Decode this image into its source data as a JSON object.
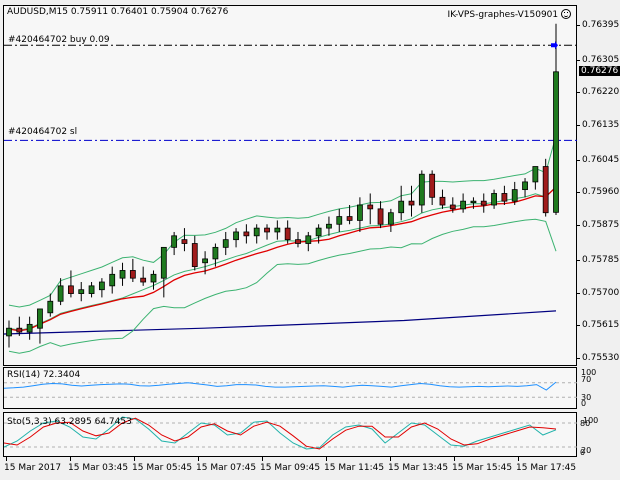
{
  "header": {
    "symbol_line": "AUDUSD,M15  0.75911 0.76401 0.75904 0.76276",
    "expert_label": "IK-VPS-graphes-V150901",
    "smiley_icon": "smiley-face-icon"
  },
  "orders": [
    {
      "label": "#420464702 buy 0.09",
      "price": 0.76345,
      "style": "dash-dot",
      "color": "#000000"
    },
    {
      "label": "#420464702 sl",
      "price": 0.76098,
      "style": "dash-dot",
      "color": "#0000cc"
    }
  ],
  "price_axis": {
    "ticks": [
      "0.76395",
      "0.76305",
      "0.76220",
      "0.76135",
      "0.76045",
      "0.75960",
      "0.75875",
      "0.75785",
      "0.75700",
      "0.75615",
      "0.75530"
    ],
    "current_price": "0.76276"
  },
  "time_axis": {
    "ticks": [
      "15 Mar 2017",
      "15 Mar 03:45",
      "15 Mar 05:45",
      "15 Mar 07:45",
      "15 Mar 09:45",
      "15 Mar 11:45",
      "15 Mar 13:45",
      "15 Mar 15:45",
      "15 Mar 17:45"
    ]
  },
  "rsi": {
    "label": "RSI(14) 72.3404",
    "levels": [
      "100",
      "70",
      "30",
      "0"
    ]
  },
  "sto": {
    "label": "Sto(5,3,3) 63.2895 64.7453",
    "levels": [
      "100",
      "80",
      "20",
      "0"
    ]
  },
  "colors": {
    "bull": "#1f7a1f",
    "bear": "#a01c1c",
    "ma_red": "#e00000",
    "bands": "#3cb371",
    "ma_navy": "#000080",
    "rsi_line": "#1e90ff",
    "sto_main": "#20b2aa",
    "sto_signal": "#e00000"
  },
  "chart_data": [
    {
      "type": "candlestick",
      "title": "AUDUSD,M15",
      "ohlc_current": {
        "open": 0.75911,
        "high": 0.76401,
        "low": 0.75904,
        "close": 0.76276
      },
      "ylim": [
        0.755,
        0.7645
      ],
      "y_ticks": [
        0.76395,
        0.76305,
        0.7622,
        0.76135,
        0.76045,
        0.7596,
        0.75875,
        0.75785,
        0.757,
        0.75615,
        0.7553
      ],
      "x_ticks": [
        "15 Mar 2017",
        "15 Mar 03:45",
        "15 Mar 05:45",
        "15 Mar 07:45",
        "15 Mar 09:45",
        "15 Mar 11:45",
        "15 Mar 13:45",
        "15 Mar 15:45",
        "15 Mar 17:45"
      ],
      "candles": [
        [
          0.7559,
          0.7563,
          0.7556,
          0.7561
        ],
        [
          0.7561,
          0.7564,
          0.7559,
          0.756
        ],
        [
          0.756,
          0.7564,
          0.7558,
          0.7562
        ],
        [
          0.7561,
          0.7565,
          0.7557,
          0.7566
        ],
        [
          0.7565,
          0.757,
          0.7564,
          0.7568
        ],
        [
          0.7568,
          0.7574,
          0.7567,
          0.7572
        ],
        [
          0.7572,
          0.7576,
          0.7569,
          0.757
        ],
        [
          0.757,
          0.7573,
          0.7568,
          0.7571
        ],
        [
          0.757,
          0.7573,
          0.7569,
          0.7572
        ],
        [
          0.7571,
          0.7574,
          0.7569,
          0.7573
        ],
        [
          0.7572,
          0.7577,
          0.757,
          0.7575
        ],
        [
          0.7574,
          0.7578,
          0.7572,
          0.7576
        ],
        [
          0.7576,
          0.7579,
          0.7573,
          0.7574
        ],
        [
          0.7574,
          0.7577,
          0.7572,
          0.7573
        ],
        [
          0.7573,
          0.7576,
          0.7571,
          0.7575
        ],
        [
          0.7574,
          0.758,
          0.7569,
          0.7582
        ],
        [
          0.7582,
          0.7586,
          0.758,
          0.7585
        ],
        [
          0.7584,
          0.7587,
          0.7581,
          0.7583
        ],
        [
          0.7583,
          0.7585,
          0.7576,
          0.7577
        ],
        [
          0.7578,
          0.7581,
          0.7575,
          0.7579
        ],
        [
          0.7579,
          0.7583,
          0.7577,
          0.7582
        ],
        [
          0.7582,
          0.7586,
          0.758,
          0.7584
        ],
        [
          0.7584,
          0.7587,
          0.7582,
          0.7586
        ],
        [
          0.7586,
          0.7588,
          0.7583,
          0.7585
        ],
        [
          0.7585,
          0.7588,
          0.7583,
          0.7587
        ],
        [
          0.7587,
          0.7588,
          0.7584,
          0.7586
        ],
        [
          0.7586,
          0.7589,
          0.7584,
          0.7587
        ],
        [
          0.7587,
          0.7589,
          0.7583,
          0.7584
        ],
        [
          0.7584,
          0.7586,
          0.7582,
          0.7583
        ],
        [
          0.7583,
          0.7586,
          0.7581,
          0.7585
        ],
        [
          0.7585,
          0.7588,
          0.7583,
          0.7587
        ],
        [
          0.7587,
          0.759,
          0.7585,
          0.7588
        ],
        [
          0.7588,
          0.7592,
          0.7586,
          0.759
        ],
        [
          0.759,
          0.7593,
          0.7588,
          0.7589
        ],
        [
          0.7589,
          0.7595,
          0.7586,
          0.7593
        ],
        [
          0.7593,
          0.7596,
          0.7588,
          0.7592
        ],
        [
          0.7592,
          0.7594,
          0.7587,
          0.7588
        ],
        [
          0.7588,
          0.7592,
          0.7586,
          0.7591
        ],
        [
          0.7591,
          0.7598,
          0.7589,
          0.7594
        ],
        [
          0.7594,
          0.7598,
          0.759,
          0.7593
        ],
        [
          0.7593,
          0.7602,
          0.7591,
          0.7601
        ],
        [
          0.7601,
          0.7602,
          0.7593,
          0.7595
        ],
        [
          0.7595,
          0.7597,
          0.7592,
          0.7593
        ],
        [
          0.7593,
          0.7595,
          0.7591,
          0.7592
        ],
        [
          0.7592,
          0.7596,
          0.7591,
          0.7594
        ],
        [
          0.7594,
          0.7595,
          0.7592,
          0.7594
        ],
        [
          0.7594,
          0.7596,
          0.7591,
          0.7593
        ],
        [
          0.7593,
          0.7597,
          0.7592,
          0.7596
        ],
        [
          0.7596,
          0.7598,
          0.7593,
          0.7594
        ],
        [
          0.7594,
          0.7599,
          0.7593,
          0.7597
        ],
        [
          0.7597,
          0.76,
          0.7595,
          0.7599
        ],
        [
          0.7599,
          0.7602,
          0.7597,
          0.7603
        ],
        [
          0.7603,
          0.7605,
          0.759,
          0.7591
        ],
        [
          0.75911,
          0.76401,
          0.75904,
          0.76276
        ]
      ],
      "overlays": [
        "Bollinger Bands (upper/middle/lower, green)",
        "Moving average (red)",
        "Moving average (navy, long period)"
      ]
    },
    {
      "type": "line",
      "title": "RSI(14)",
      "current": 72.3404,
      "ylim": [
        0,
        100
      ],
      "levels": [
        70,
        30
      ],
      "values": [
        55,
        56,
        58,
        62,
        66,
        68,
        67,
        63,
        61,
        63,
        65,
        66,
        67,
        66,
        62,
        61,
        63,
        66,
        68,
        70,
        67,
        64,
        60,
        62,
        65,
        65,
        64,
        60,
        58,
        58,
        59,
        60,
        61,
        62,
        60,
        58,
        61,
        63,
        62,
        60,
        58,
        62,
        65,
        68,
        66,
        62,
        59,
        58,
        59,
        60,
        59,
        60,
        61,
        60,
        62,
        65,
        50,
        72
      ]
    },
    {
      "type": "line",
      "title": "Sto(5,3,3)",
      "main_current": 63.2895,
      "signal_current": 64.7453,
      "ylim": [
        0,
        100
      ],
      "levels": [
        80,
        20
      ],
      "series": [
        {
          "name": "main",
          "values": [
            20,
            35,
            60,
            80,
            85,
            70,
            45,
            40,
            65,
            95,
            90,
            65,
            35,
            30,
            55,
            80,
            75,
            50,
            55,
            82,
            85,
            55,
            30,
            15,
            18,
            50,
            70,
            75,
            65,
            30,
            55,
            80,
            75,
            50,
            25,
            22,
            35,
            45,
            55,
            65,
            75,
            50,
            63
          ]
        },
        {
          "name": "signal",
          "values": [
            30,
            25,
            45,
            70,
            80,
            82,
            60,
            48,
            55,
            80,
            92,
            75,
            50,
            35,
            45,
            70,
            78,
            60,
            50,
            72,
            82,
            72,
            48,
            22,
            15,
            40,
            62,
            72,
            72,
            45,
            45,
            70,
            80,
            65,
            40,
            25,
            28,
            40,
            50,
            60,
            70,
            68,
            65
          ]
        }
      ]
    }
  ]
}
